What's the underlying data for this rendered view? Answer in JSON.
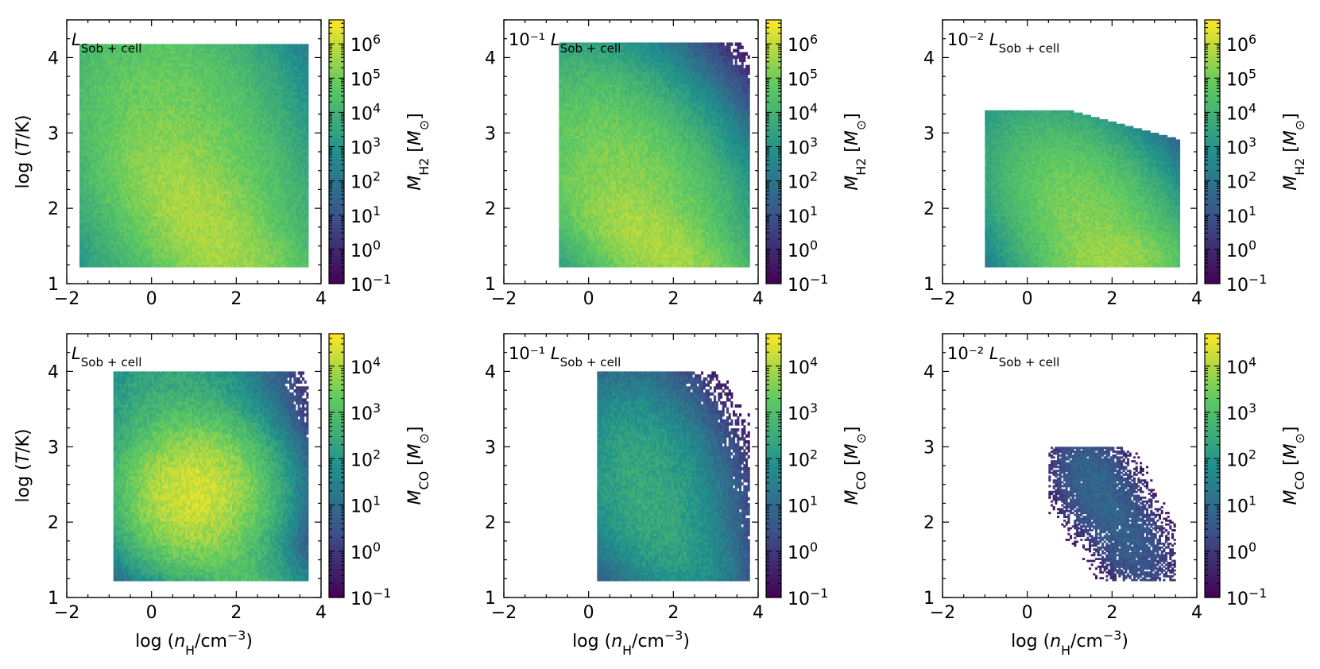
{
  "figure_title": "",
  "chart_data": [
    {
      "type": "heatmap",
      "id": "h2-full",
      "species": "H2",
      "panel_label": {
        "prefix": "",
        "symbol": "L",
        "subscript": "Sob + cell"
      },
      "xlim": [
        -2,
        4
      ],
      "ylim": [
        1,
        4.5
      ],
      "xticks": [
        -2,
        0,
        2,
        4
      ],
      "yticks": [
        1,
        2,
        3,
        4
      ],
      "xtick_labels": [
        "−2",
        "0",
        "2",
        "4"
      ],
      "ytick_labels": [
        "1",
        "2",
        "3",
        "4"
      ],
      "xlabel": {
        "prefix": "",
        "symbol": "",
        "suffix": ""
      },
      "ylabel": {
        "prefix": "log (",
        "symbol": "T",
        "suffix": "/K)"
      },
      "colorbar": {
        "symbol": "M",
        "subscript": "H2",
        "unit": "[M",
        "unit_subscript": "⊙",
        "unit_close": "]",
        "log_range": [
          -1,
          6.7
        ],
        "tick_exponents": [
          "−1",
          "0",
          "1",
          "2",
          "3",
          "4",
          "5",
          "6"
        ],
        "tick_base": "10",
        "colormap": [
          "#440154",
          "#3b528b",
          "#21918c",
          "#5ec962",
          "#fde725"
        ]
      },
      "blobs": [
        {
          "x": 0.3,
          "y": 3.85,
          "sx": 1.1,
          "sy": 0.32,
          "logw": 4.2,
          "tilt": 0
        },
        {
          "x": 0.8,
          "y": 2.5,
          "sx": 1.15,
          "sy": 0.85,
          "logw": 5.2,
          "tilt": -0.3
        },
        {
          "x": 1.2,
          "y": 1.8,
          "sx": 0.9,
          "sy": 0.45,
          "logw": 5.6,
          "tilt": -0.4
        },
        {
          "x": 2.0,
          "y": 1.35,
          "sx": 0.9,
          "sy": 0.2,
          "logw": 4.8,
          "tilt": 0
        }
      ],
      "support": {
        "xmin": -1.7,
        "xmax": 3.7,
        "ymin": 1.22,
        "ymax": 4.18,
        "top_slope": 0
      }
    },
    {
      "type": "heatmap",
      "id": "h2-tenth",
      "species": "H2",
      "panel_label": {
        "prefix": "10⁻¹ ",
        "symbol": "L",
        "subscript": "Sob + cell"
      },
      "xlim": [
        -2,
        4
      ],
      "ylim": [
        1,
        4.5
      ],
      "xticks": [
        -2,
        0,
        2,
        4
      ],
      "yticks": [
        1,
        2,
        3,
        4
      ],
      "xtick_labels": [
        "−2",
        "0",
        "2",
        "4"
      ],
      "ytick_labels": [
        "1",
        "2",
        "3",
        "4"
      ],
      "xlabel": {
        "prefix": "",
        "symbol": "",
        "suffix": ""
      },
      "ylabel": {
        "prefix": "",
        "symbol": "",
        "suffix": ""
      },
      "colorbar": {
        "symbol": "M",
        "subscript": "H2",
        "unit": "[M",
        "unit_subscript": "⊙",
        "unit_close": "]",
        "log_range": [
          -1,
          6.7
        ],
        "tick_exponents": [
          "−1",
          "0",
          "1",
          "2",
          "3",
          "4",
          "5",
          "6"
        ],
        "tick_base": "10",
        "colormap": [
          "#440154",
          "#3b528b",
          "#21918c",
          "#5ec962",
          "#fde725"
        ]
      },
      "blobs": [
        {
          "x": 0.3,
          "y": 2.8,
          "sx": 1.0,
          "sy": 0.8,
          "logw": 3.0,
          "tilt": -0.2
        },
        {
          "x": 1.0,
          "y": 2.2,
          "sx": 1.0,
          "sy": 0.6,
          "logw": 5.3,
          "tilt": -0.3
        },
        {
          "x": 1.6,
          "y": 1.5,
          "sx": 0.9,
          "sy": 0.3,
          "logw": 5.6,
          "tilt": -0.3
        }
      ],
      "support": {
        "xmin": -0.7,
        "xmax": 3.8,
        "ymin": 1.22,
        "ymax": 4.2,
        "top_slope": 0
      }
    },
    {
      "type": "heatmap",
      "id": "h2-hundredth",
      "species": "H2",
      "panel_label": {
        "prefix": "10⁻² ",
        "symbol": "L",
        "subscript": "Sob + cell"
      },
      "xlim": [
        -2,
        4
      ],
      "ylim": [
        1,
        4.5
      ],
      "xticks": [
        -2,
        0,
        2,
        4
      ],
      "yticks": [
        1,
        2,
        3,
        4
      ],
      "xtick_labels": [
        "−2",
        "0",
        "2",
        "4"
      ],
      "ytick_labels": [
        "1",
        "2",
        "3",
        "4"
      ],
      "xlabel": {
        "prefix": "",
        "symbol": "",
        "suffix": ""
      },
      "ylabel": {
        "prefix": "",
        "symbol": "",
        "suffix": ""
      },
      "colorbar": {
        "symbol": "M",
        "subscript": "H2",
        "unit": "[M",
        "unit_subscript": "⊙",
        "unit_close": "]",
        "log_range": [
          -1,
          6.7
        ],
        "tick_exponents": [
          "−1",
          "0",
          "1",
          "2",
          "3",
          "4",
          "5",
          "6"
        ],
        "tick_base": "10",
        "colormap": [
          "#440154",
          "#3b528b",
          "#21918c",
          "#5ec962",
          "#fde725"
        ]
      },
      "blobs": [
        {
          "x": 0.1,
          "y": 2.6,
          "sx": 0.8,
          "sy": 0.7,
          "logw": 1.6,
          "tilt": -0.2
        },
        {
          "x": 1.5,
          "y": 1.8,
          "sx": 0.9,
          "sy": 0.5,
          "logw": 5.2,
          "tilt": -0.3
        },
        {
          "x": 2.0,
          "y": 1.35,
          "sx": 0.7,
          "sy": 0.2,
          "logw": 5.4,
          "tilt": 0
        }
      ],
      "support": {
        "xmin": -1.0,
        "xmax": 3.6,
        "ymin": 1.22,
        "ymax": 3.3,
        "top_slope": -0.15
      }
    },
    {
      "type": "heatmap",
      "id": "co-full",
      "species": "CO",
      "panel_label": {
        "prefix": "",
        "symbol": "L",
        "subscript": "Sob + cell"
      },
      "xlim": [
        -2,
        4
      ],
      "ylim": [
        1,
        4.5
      ],
      "xticks": [
        -2,
        0,
        2,
        4
      ],
      "yticks": [
        1,
        2,
        3,
        4
      ],
      "xtick_labels": [
        "−2",
        "0",
        "2",
        "4"
      ],
      "ytick_labels": [
        "1",
        "2",
        "3",
        "4"
      ],
      "xlabel": {
        "prefix": "log (",
        "symbol": "n",
        "subscript": "H",
        "suffix": "/cm",
        "sup": "−3",
        "close": ")"
      },
      "ylabel": {
        "prefix": "log (",
        "symbol": "T",
        "suffix": "/K)"
      },
      "colorbar": {
        "symbol": "M",
        "subscript": "CO",
        "unit": "[M",
        "unit_subscript": "⊙",
        "unit_close": "]",
        "log_range": [
          -1,
          4.7
        ],
        "tick_exponents": [
          "−1",
          "0",
          "1",
          "2",
          "3",
          "4"
        ],
        "tick_base": "10",
        "colormap": [
          "#440154",
          "#3b528b",
          "#21918c",
          "#5ec962",
          "#fde725"
        ]
      },
      "blobs": [
        {
          "x": 0.5,
          "y": 3.4,
          "sx": 0.9,
          "sy": 0.55,
          "logw": 2.6,
          "tilt": 0
        },
        {
          "x": 1.0,
          "y": 2.4,
          "sx": 0.7,
          "sy": 0.4,
          "logw": 4.3,
          "tilt": 0
        },
        {
          "x": 1.6,
          "y": 1.6,
          "sx": 0.9,
          "sy": 0.35,
          "logw": 3.0,
          "tilt": -0.4
        }
      ],
      "support": {
        "xmin": -0.9,
        "xmax": 3.7,
        "ymin": 1.22,
        "ymax": 4.0,
        "top_slope": 0
      }
    },
    {
      "type": "heatmap",
      "id": "co-tenth",
      "species": "CO",
      "panel_label": {
        "prefix": "10⁻¹ ",
        "symbol": "L",
        "subscript": "Sob + cell"
      },
      "xlim": [
        -2,
        4
      ],
      "ylim": [
        1,
        4.5
      ],
      "xticks": [
        -2,
        0,
        2,
        4
      ],
      "yticks": [
        1,
        2,
        3,
        4
      ],
      "xtick_labels": [
        "−2",
        "0",
        "2",
        "4"
      ],
      "ytick_labels": [
        "1",
        "2",
        "3",
        "4"
      ],
      "xlabel": {
        "prefix": "log (",
        "symbol": "n",
        "subscript": "H",
        "suffix": "/cm",
        "sup": "−3",
        "close": ")"
      },
      "ylabel": {
        "prefix": "",
        "symbol": "",
        "suffix": ""
      },
      "colorbar": {
        "symbol": "M",
        "subscript": "CO",
        "unit": "[M",
        "unit_subscript": "⊙",
        "unit_close": "]",
        "log_range": [
          -1,
          4.7
        ],
        "tick_exponents": [
          "−1",
          "0",
          "1",
          "2",
          "3",
          "4"
        ],
        "tick_base": "10",
        "colormap": [
          "#440154",
          "#3b528b",
          "#21918c",
          "#5ec962",
          "#fde725"
        ]
      },
      "blobs": [
        {
          "x": 1.3,
          "y": 2.5,
          "sx": 0.8,
          "sy": 0.6,
          "logw": 2.4,
          "tilt": -0.2
        },
        {
          "x": 2.0,
          "y": 1.7,
          "sx": 0.7,
          "sy": 0.35,
          "logw": 2.0,
          "tilt": -0.3
        }
      ],
      "support": {
        "xmin": 0.2,
        "xmax": 3.8,
        "ymin": 1.22,
        "ymax": 4.0,
        "top_slope": 0
      }
    },
    {
      "type": "heatmap",
      "id": "co-hundredth",
      "species": "CO",
      "panel_label": {
        "prefix": "10⁻² ",
        "symbol": "L",
        "subscript": "Sob + cell"
      },
      "xlim": [
        -2,
        4
      ],
      "ylim": [
        1,
        4.5
      ],
      "xticks": [
        -2,
        0,
        2,
        4
      ],
      "yticks": [
        1,
        2,
        3,
        4
      ],
      "xtick_labels": [
        "−2",
        "0",
        "2",
        "4"
      ],
      "ytick_labels": [
        "1",
        "2",
        "3",
        "4"
      ],
      "xlabel": {
        "prefix": "log (",
        "symbol": "n",
        "subscript": "H",
        "suffix": "/cm",
        "sup": "−3",
        "close": ")"
      },
      "ylabel": {
        "prefix": "",
        "symbol": "",
        "suffix": ""
      },
      "colorbar": {
        "symbol": "M",
        "subscript": "CO",
        "unit": "[M",
        "unit_subscript": "⊙",
        "unit_close": "]",
        "log_range": [
          -1,
          4.7
        ],
        "tick_exponents": [
          "−1",
          "0",
          "1",
          "2",
          "3",
          "4"
        ],
        "tick_base": "10",
        "colormap": [
          "#440154",
          "#3b528b",
          "#21918c",
          "#5ec962",
          "#fde725"
        ]
      },
      "blobs": [
        {
          "x": 1.6,
          "y": 2.5,
          "sx": 0.5,
          "sy": 0.35,
          "logw": 0.9,
          "tilt": -0.3
        },
        {
          "x": 2.5,
          "y": 1.7,
          "sx": 0.5,
          "sy": 0.35,
          "logw": 0.6,
          "tilt": -0.3
        }
      ],
      "support": {
        "xmin": 0.5,
        "xmax": 3.5,
        "ymin": 1.22,
        "ymax": 3.0,
        "top_slope": 0
      }
    }
  ]
}
